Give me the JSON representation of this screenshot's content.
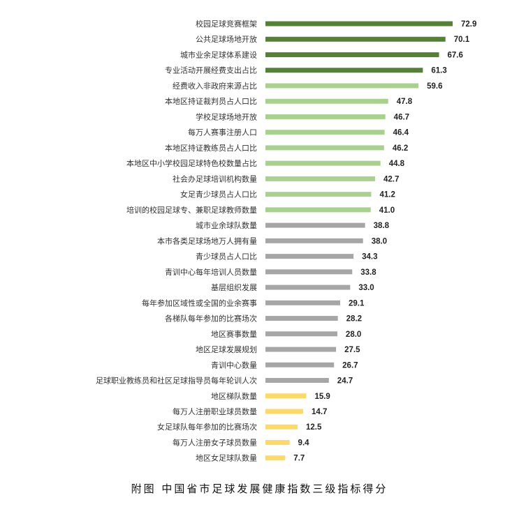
{
  "caption": "附图  中国省市足球发展健康指数三级指标得分",
  "colors": {
    "dark_green": "#548235",
    "light_green": "#a9d18e",
    "gray": "#a6a6a6",
    "yellow": "#ffd966"
  },
  "chart_data": {
    "type": "bar",
    "orientation": "horizontal",
    "title": "附图  中国省市足球发展健康指数三级指标得分",
    "xlabel": "",
    "ylabel": "",
    "xlim": [
      0,
      72.9
    ],
    "grid": false,
    "categories": [
      "校园足球竞赛框架",
      "公共足球场地开放",
      "城市业余足球体系建设",
      "专业活动开展经费支出占比",
      "经费收入非政府来源占比",
      "本地区持证裁判员占人口比",
      "学校足球场地开放",
      "每万人赛事注册人口",
      "本地区持证教练员占人口比",
      "本地区中小学校园足球特色校数量占比",
      "社会办足球培训机构数量",
      "女足青少球员占人口比",
      "培训的校园足球专、兼职足球教师数量",
      "城市业余球队数量",
      "本市各类足球场地万人拥有量",
      "青少球员占人口比",
      "青训中心每年培训人员数量",
      "基层组织发展",
      "每年参加区域性或全国的业余赛事",
      "各梯队每年参加的比赛场次",
      "地区赛事数量",
      "地区足球发展规划",
      "青训中心数量",
      "足球职业教练员和社区足球指导员每年轮训人次",
      "地区梯队数量",
      "每万人注册职业球员数量",
      "女足球队每年参加的比赛场次",
      "每万人注册女子球员数量",
      "地区女足球队数量"
    ],
    "values": [
      72.9,
      70.1,
      67.6,
      61.3,
      59.6,
      47.8,
      46.7,
      46.4,
      46.2,
      44.8,
      42.7,
      41.2,
      41.0,
      38.8,
      38.0,
      34.3,
      33.8,
      33.0,
      29.1,
      28.2,
      28.0,
      27.5,
      26.7,
      24.7,
      15.9,
      14.7,
      12.5,
      9.4,
      7.7
    ],
    "value_labels": [
      "72.9",
      "70.1",
      "67.6",
      "61.3",
      "59.6",
      "47.8",
      "46.7",
      "46.4",
      "46.2",
      "44.8",
      "42.7",
      "41.2",
      "41.0",
      "38.8",
      "38.0",
      "34.3",
      "33.8",
      "33.0",
      "29.1",
      "28.2",
      "28.0",
      "27.5",
      "26.7",
      "24.7",
      "15.9",
      "14.7",
      "12.5",
      "9.4",
      "7.7"
    ],
    "bar_colors": [
      "#548235",
      "#548235",
      "#548235",
      "#548235",
      "#a9d18e",
      "#a9d18e",
      "#a9d18e",
      "#a9d18e",
      "#a9d18e",
      "#a9d18e",
      "#a9d18e",
      "#a9d18e",
      "#a9d18e",
      "#a6a6a6",
      "#a6a6a6",
      "#a6a6a6",
      "#a6a6a6",
      "#a6a6a6",
      "#a6a6a6",
      "#a6a6a6",
      "#a6a6a6",
      "#a6a6a6",
      "#a6a6a6",
      "#a6a6a6",
      "#ffd966",
      "#ffd966",
      "#ffd966",
      "#ffd966",
      "#ffd966"
    ]
  }
}
